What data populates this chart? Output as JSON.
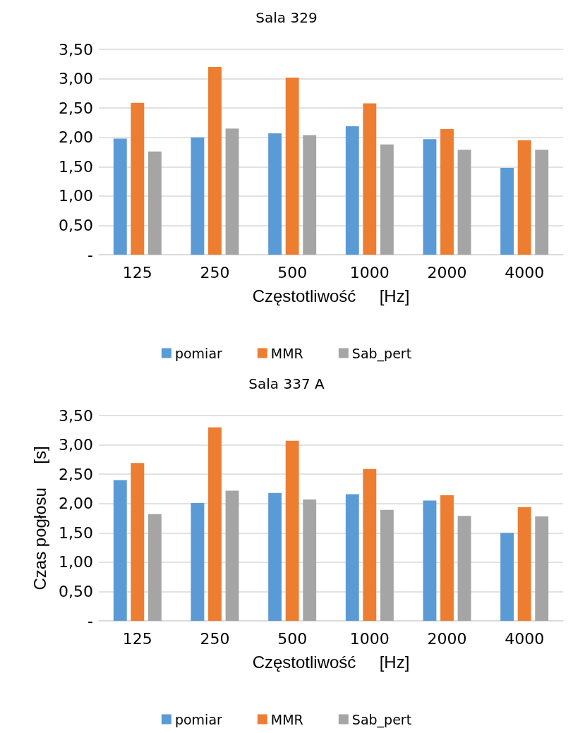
{
  "chart_data": [
    {
      "type": "bar",
      "title": "Sala 329",
      "xlabel": "Częstotliwość     [Hz]",
      "categories": [
        "125",
        "250",
        "500",
        "1000",
        "2000",
        "4000"
      ],
      "series": [
        {
          "name": "pomiar",
          "color": "#5b9bd5",
          "values": [
            1.98,
            2.0,
            2.07,
            2.19,
            1.97,
            1.48
          ]
        },
        {
          "name": "MMR",
          "color": "#ed7d31",
          "values": [
            2.59,
            3.2,
            3.02,
            2.58,
            2.14,
            1.95
          ]
        },
        {
          "name": "Sab_pert",
          "color": "#a5a5a5",
          "values": [
            1.76,
            2.15,
            2.04,
            1.88,
            1.79,
            1.79
          ]
        }
      ],
      "ylim": [
        0,
        3.5
      ],
      "yticks": [
        {
          "value": 0,
          "label": "-"
        },
        {
          "value": 0.5,
          "label": "0,50"
        },
        {
          "value": 1,
          "label": "1,00"
        },
        {
          "value": 1.5,
          "label": "1,50"
        },
        {
          "value": 2,
          "label": "2,00"
        },
        {
          "value": 2.5,
          "label": "2,50"
        },
        {
          "value": 3,
          "label": "3,00"
        },
        {
          "value": 3.5,
          "label": "3,50"
        }
      ],
      "grid": "y",
      "legend": "bottom"
    },
    {
      "type": "bar",
      "title": "Sala 337 A",
      "xlabel": "Częstotliwość     [Hz]",
      "ylabel": "Czas pogłosu     [s]",
      "categories": [
        "125",
        "250",
        "500",
        "1000",
        "2000",
        "4000"
      ],
      "series": [
        {
          "name": "pomiar",
          "color": "#5b9bd5",
          "values": [
            2.4,
            2.01,
            2.18,
            2.16,
            2.05,
            1.5
          ]
        },
        {
          "name": "MMR",
          "color": "#ed7d31",
          "values": [
            2.69,
            3.3,
            3.07,
            2.59,
            2.14,
            1.94
          ]
        },
        {
          "name": "Sab_pert",
          "color": "#a5a5a5",
          "values": [
            1.82,
            2.22,
            2.07,
            1.89,
            1.79,
            1.78
          ]
        }
      ],
      "ylim": [
        0,
        3.5
      ],
      "yticks": [
        {
          "value": 0,
          "label": "-"
        },
        {
          "value": 0.5,
          "label": "0,50"
        },
        {
          "value": 1,
          "label": "1,00"
        },
        {
          "value": 1.5,
          "label": "1,50"
        },
        {
          "value": 2,
          "label": "2,00"
        },
        {
          "value": 2.5,
          "label": "2,50"
        },
        {
          "value": 3,
          "label": "3,00"
        },
        {
          "value": 3.5,
          "label": "3,50"
        }
      ],
      "grid": "y",
      "legend": "bottom"
    }
  ]
}
